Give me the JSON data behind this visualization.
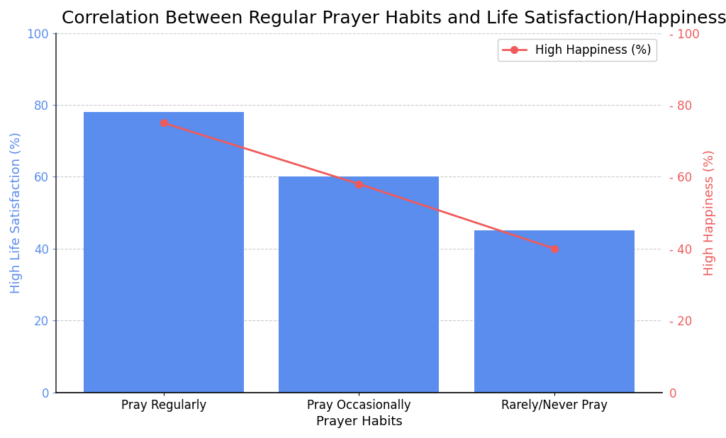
{
  "title": "Correlation Between Regular Prayer Habits and Life Satisfaction/Happiness",
  "categories": [
    "Pray Regularly",
    "Pray Occasionally",
    "Rarely/Never Pray"
  ],
  "bar_values": [
    78,
    60,
    45
  ],
  "line_values": [
    75,
    58,
    40
  ],
  "bar_color": "#5b8dee",
  "line_color": "#f05a5a",
  "ylabel_left": "High Life Satisfaction (%)",
  "ylabel_right": "High Happiness (%)",
  "xlabel": "Prayer Habits",
  "ylim": [
    0,
    100
  ],
  "yticks": [
    0,
    20,
    40,
    60,
    80,
    100
  ],
  "left_tick_color": "#5b8dee",
  "right_tick_color": "#f05a5a",
  "title_fontsize": 18,
  "axis_label_fontsize": 13,
  "tick_fontsize": 12,
  "legend_label": "High Happiness (%)",
  "background_color": "#ffffff",
  "grid_color": "#cccccc",
  "bar_width": 0.82,
  "figsize": [
    10.24,
    6.18
  ],
  "dpi": 100
}
